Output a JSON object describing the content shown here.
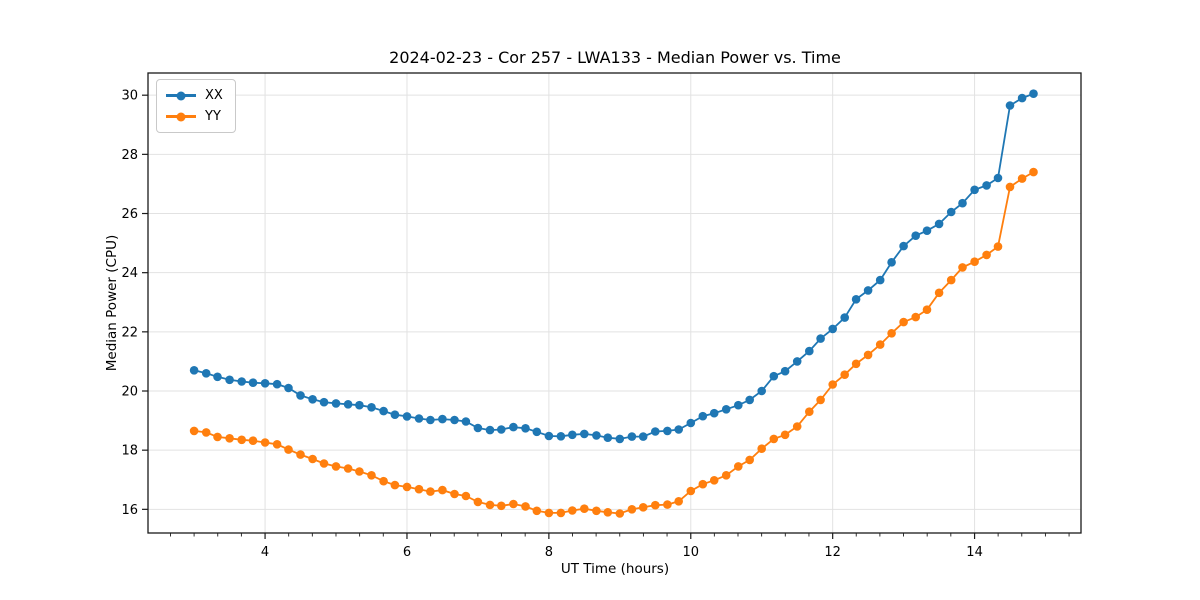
{
  "chart_data": {
    "type": "line",
    "title": "2024-02-23 - Cor 257 - LWA133 - Median Power vs. Time",
    "xlabel": "UT Time (hours)",
    "ylabel": "Median Power (CPU)",
    "xlim": [
      2.35,
      15.5
    ],
    "ylim": [
      15.2,
      30.75
    ],
    "x_ticks": [
      4,
      6,
      8,
      10,
      12,
      14
    ],
    "x_minor_tick_step": 0.3333,
    "y_ticks": [
      16,
      18,
      20,
      22,
      24,
      26,
      28,
      30
    ],
    "grid": true,
    "grid_color": "#e2e2e2",
    "legend_position": "upper-left",
    "marker": "circle",
    "x": [
      3.0,
      3.17,
      3.33,
      3.5,
      3.67,
      3.83,
      4.0,
      4.17,
      4.33,
      4.5,
      4.67,
      4.83,
      5.0,
      5.17,
      5.33,
      5.5,
      5.67,
      5.83,
      6.0,
      6.17,
      6.33,
      6.5,
      6.67,
      6.83,
      7.0,
      7.17,
      7.33,
      7.5,
      7.67,
      7.83,
      8.0,
      8.17,
      8.33,
      8.5,
      8.67,
      8.83,
      9.0,
      9.17,
      9.33,
      9.5,
      9.67,
      9.83,
      10.0,
      10.17,
      10.33,
      10.5,
      10.67,
      10.83,
      11.0,
      11.17,
      11.33,
      11.5,
      11.67,
      11.83,
      12.0,
      12.17,
      12.33,
      12.5,
      12.67,
      12.83,
      13.0,
      13.17,
      13.33,
      13.5,
      13.67,
      13.83,
      14.0,
      14.17,
      14.33,
      14.5,
      14.67,
      14.83
    ],
    "series": [
      {
        "name": "XX",
        "color": "#1f77b4",
        "values": [
          20.7,
          20.6,
          20.48,
          20.38,
          20.32,
          20.28,
          20.26,
          20.23,
          20.1,
          19.85,
          19.72,
          19.62,
          19.58,
          19.55,
          19.52,
          19.45,
          19.32,
          19.2,
          19.14,
          19.07,
          19.02,
          19.05,
          19.02,
          18.97,
          18.75,
          18.68,
          18.7,
          18.78,
          18.74,
          18.62,
          18.48,
          18.47,
          18.52,
          18.55,
          18.5,
          18.42,
          18.38,
          18.46,
          18.46,
          18.63,
          18.65,
          18.7,
          18.92,
          19.15,
          19.25,
          19.38,
          19.52,
          19.7,
          20.0,
          20.5,
          20.67,
          21.0,
          21.35,
          21.77,
          22.1,
          22.48,
          23.1,
          23.4,
          23.75,
          24.35,
          24.9,
          25.25,
          25.42,
          25.65,
          26.05,
          26.35,
          26.8,
          26.95,
          27.2,
          29.65,
          29.9,
          30.05
        ]
      },
      {
        "name": "YY",
        "color": "#ff7f0e",
        "values": [
          18.65,
          18.6,
          18.45,
          18.4,
          18.35,
          18.32,
          18.26,
          18.2,
          18.02,
          17.85,
          17.7,
          17.55,
          17.45,
          17.38,
          17.28,
          17.15,
          16.95,
          16.82,
          16.76,
          16.68,
          16.6,
          16.65,
          16.52,
          16.45,
          16.25,
          16.15,
          16.12,
          16.18,
          16.1,
          15.95,
          15.88,
          15.88,
          15.96,
          16.02,
          15.95,
          15.9,
          15.86,
          16.0,
          16.07,
          16.14,
          16.16,
          16.27,
          16.62,
          16.85,
          16.98,
          17.15,
          17.45,
          17.67,
          18.05,
          18.38,
          18.52,
          18.8,
          19.3,
          19.7,
          20.22,
          20.55,
          20.92,
          21.22,
          21.57,
          21.95,
          22.33,
          22.5,
          22.75,
          23.32,
          23.75,
          24.18,
          24.37,
          24.6,
          24.88,
          26.9,
          27.18,
          27.4
        ]
      }
    ]
  }
}
